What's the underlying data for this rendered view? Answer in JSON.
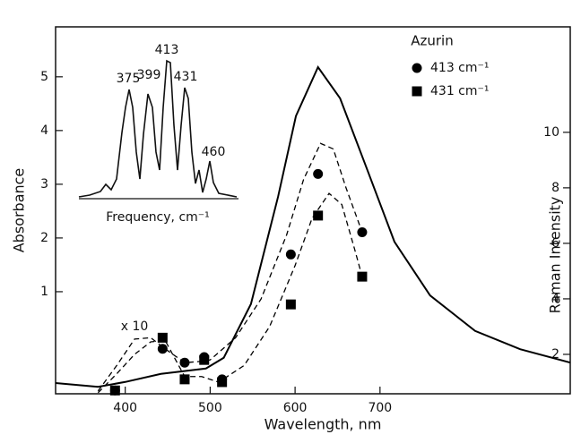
{
  "chart_data": {
    "type": "line",
    "x_label": "Wavelength, nm",
    "y_label": "Absorbance",
    "y2_label": "Raman Intensity",
    "legend_title": "Azurin",
    "annotation": "x 10",
    "xlim": [
      318,
      924
    ],
    "xticks": [
      400,
      500,
      600,
      700
    ],
    "ylim": [
      -0.9,
      5.93
    ],
    "yticks": [
      1,
      2,
      3,
      4,
      5
    ],
    "y2lim": [
      0.58,
      13.8
    ],
    "y2ticks": [
      2,
      4,
      6,
      8,
      10
    ],
    "series": [
      {
        "color": "#000",
        "style": "solid",
        "x": [
          318,
          368,
          400,
          442,
          495,
          516,
          548,
          580,
          601,
          627,
          653,
          685,
          717,
          759,
          812,
          865,
          924
        ],
        "values": [
          -0.7,
          -0.77,
          -0.68,
          -0.53,
          -0.43,
          -0.23,
          0.77,
          2.77,
          4.27,
          5.18,
          4.6,
          3.27,
          1.93,
          0.93,
          0.27,
          -0.07,
          -0.32
        ]
      },
      {
        "color": "#000",
        "style": "dashed",
        "axis": "y2",
        "x": [
          368,
          390,
          411,
          430,
          447,
          470,
          490,
          500,
          530,
          560,
          590,
          610,
          630,
          645,
          660,
          679
        ],
        "values": [
          0.68,
          1.6,
          2.55,
          2.6,
          2.2,
          1.7,
          1.75,
          1.8,
          2.6,
          4.0,
          6.3,
          8.3,
          9.6,
          9.4,
          8.0,
          6.4
        ]
      },
      {
        "color": "#000",
        "style": "dashed",
        "axis": "y2",
        "x": [
          368,
          390,
          411,
          430,
          447,
          470,
          490,
          510,
          540,
          570,
          600,
          620,
          640,
          655,
          670,
          679
        ],
        "values": [
          0.62,
          1.3,
          2.0,
          2.45,
          2.5,
          1.2,
          1.2,
          1.0,
          1.6,
          3.0,
          5.2,
          6.9,
          7.8,
          7.4,
          5.8,
          4.8
        ]
      },
      {
        "name": "413 cm⁻¹",
        "color": "#000",
        "style": "markers",
        "marker": "circle",
        "axis": "y2",
        "x": [
          388,
          444,
          470,
          493,
          514,
          595,
          627,
          679
        ],
        "values": [
          0.7,
          2.2,
          1.7,
          1.9,
          1.1,
          5.6,
          8.5,
          6.4
        ]
      },
      {
        "name": "431 cm⁻¹",
        "color": "#000",
        "style": "markers",
        "marker": "square",
        "axis": "y2",
        "x": [
          388,
          444,
          470,
          493,
          514,
          595,
          627,
          679
        ],
        "values": [
          0.7,
          2.6,
          1.1,
          1.8,
          1.0,
          3.8,
          7.0,
          4.8
        ]
      }
    ],
    "inset": {
      "x_label": "Frequency, cm⁻¹",
      "peak_labels": [
        "375",
        "399",
        "413",
        "431",
        "460"
      ]
    }
  }
}
